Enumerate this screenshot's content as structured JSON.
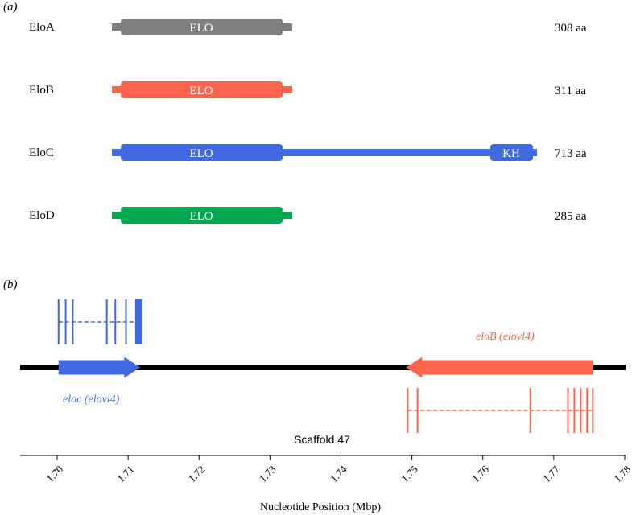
{
  "panel_a": {
    "label": "(a)",
    "proteins": [
      {
        "name": "EloA",
        "length": "308 aa",
        "color": "#7f7f7f",
        "domains": [
          {
            "label": "ELO"
          }
        ]
      },
      {
        "name": "EloB",
        "length": "311 aa",
        "color": "#ff654c",
        "domains": [
          {
            "label": "ELO"
          }
        ]
      },
      {
        "name": "EloC",
        "length": "713 aa",
        "color": "#4169e1",
        "domains": [
          {
            "label": "ELO"
          },
          {
            "label": "KH"
          }
        ]
      },
      {
        "name": "EloD",
        "length": "285 aa",
        "color": "#00a94f",
        "domains": [
          {
            "label": "ELO"
          }
        ]
      }
    ]
  },
  "panel_b": {
    "label": "(b)",
    "scaffold_label": "Scaffold 47",
    "genes": [
      {
        "name": "eloc (elovl4)",
        "color": "#4169e1",
        "strand": "+",
        "start": 1.7002,
        "end": 1.7115,
        "exons": [
          1.7002,
          1.7012,
          1.7022,
          1.707,
          1.7082,
          1.7097,
          1.7115
        ]
      },
      {
        "name": "eloB (elovl4)",
        "color": "#ff654c",
        "strand": "-",
        "start": 1.7494,
        "end": 1.7755,
        "exons": [
          1.7494,
          1.7508,
          1.7667,
          1.772,
          1.7729,
          1.7738,
          1.7747,
          1.7755
        ]
      }
    ],
    "axis": {
      "title": "Nucleotide Position (Mbp)",
      "min": 1.695,
      "max": 1.78,
      "ticks": [
        "1.70",
        "1.71",
        "1.72",
        "1.73",
        "1.74",
        "1.75",
        "1.76",
        "1.77",
        "1.78"
      ]
    }
  }
}
